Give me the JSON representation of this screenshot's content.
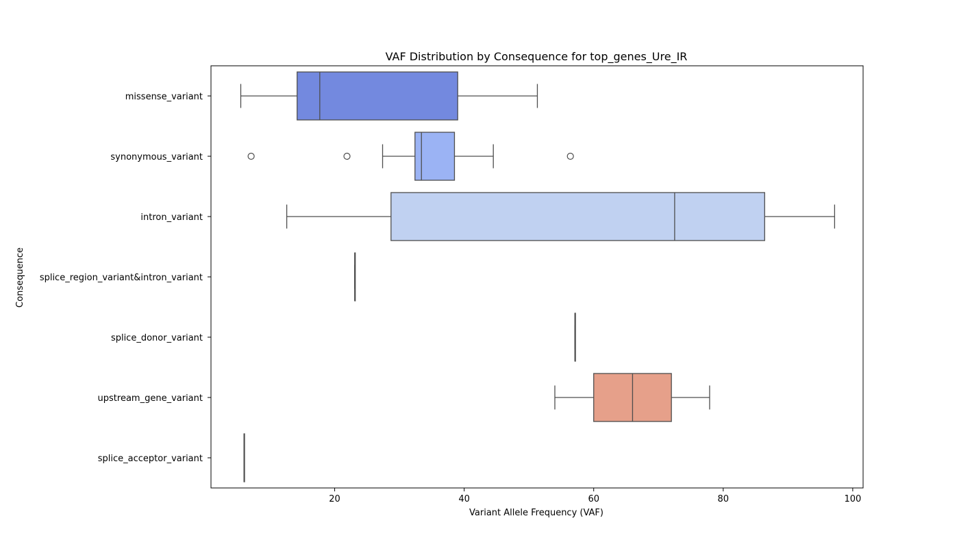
{
  "chart_data": {
    "type": "box",
    "title": "VAF Distribution by Consequence for top_genes_Ure_IR",
    "xlabel": "Variant Allele Frequency (VAF)",
    "ylabel": "Consequence",
    "xlim": [
      0.9,
      101.6
    ],
    "xticks": [
      20,
      40,
      60,
      80,
      100
    ],
    "grid": false,
    "categories": [
      "missense_variant",
      "synonymous_variant",
      "intron_variant",
      "splice_region_variant&intron_variant",
      "splice_donor_variant",
      "upstream_gene_variant",
      "splice_acceptor_variant"
    ],
    "boxes": [
      {
        "category": "missense_variant",
        "whisker_low": 5.5,
        "q1": 14.2,
        "median": 17.7,
        "q3": 39.0,
        "whisker_high": 51.3,
        "outliers": [],
        "color": "#7389df"
      },
      {
        "category": "synonymous_variant",
        "whisker_low": 27.4,
        "q1": 32.4,
        "median": 33.4,
        "q3": 38.5,
        "whisker_high": 44.5,
        "outliers": [
          7.1,
          21.9,
          56.4
        ],
        "color": "#9bb3f4"
      },
      {
        "category": "intron_variant",
        "whisker_low": 12.6,
        "q1": 28.7,
        "median": 72.5,
        "q3": 86.4,
        "whisker_high": 97.2,
        "outliers": [],
        "color": "#c0d1f1"
      },
      {
        "category": "splice_region_variant&intron_variant",
        "whisker_low": 23.1,
        "q1": 23.1,
        "median": 23.1,
        "q3": 23.1,
        "whisker_high": 23.1,
        "outliers": [],
        "color": "#dcdbdb"
      },
      {
        "category": "splice_donor_variant",
        "whisker_low": 57.1,
        "q1": 57.1,
        "median": 57.1,
        "q3": 57.1,
        "whisker_high": 57.1,
        "outliers": [],
        "color": "#f1ccb8"
      },
      {
        "category": "upstream_gene_variant",
        "whisker_low": 54.0,
        "q1": 60.0,
        "median": 66.0,
        "q3": 72.0,
        "whisker_high": 77.9,
        "outliers": [],
        "color": "#e6a08a"
      },
      {
        "category": "splice_acceptor_variant",
        "whisker_low": 6.0,
        "q1": 6.0,
        "median": 6.0,
        "q3": 6.0,
        "whisker_high": 6.0,
        "outliers": [],
        "color": "#d6604d"
      }
    ]
  }
}
